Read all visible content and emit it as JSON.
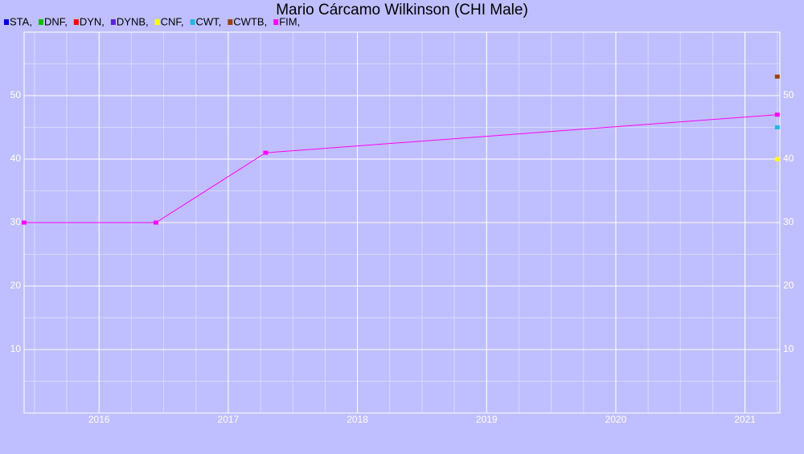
{
  "chart_data": {
    "type": "line",
    "title": "Mario Cárcamo Wilkinson (CHI Male)",
    "series": [
      {
        "name": "STA,",
        "color": "#0000dd",
        "x": [],
        "values": []
      },
      {
        "name": "DNF,",
        "color": "#00c000",
        "x": [],
        "values": []
      },
      {
        "name": "DYN,",
        "color": "#ff0000",
        "x": [],
        "values": []
      },
      {
        "name": "DYNB,",
        "color": "#6020e0",
        "x": [],
        "values": []
      },
      {
        "name": "CNF,",
        "color": "#ffff00",
        "x": [
          2021.25
        ],
        "values": [
          40
        ]
      },
      {
        "name": "CWT,",
        "color": "#20b8e0",
        "x": [
          2021.25
        ],
        "values": [
          45
        ]
      },
      {
        "name": "CWTB,",
        "color": "#a04000",
        "x": [
          2021.25
        ],
        "values": [
          53
        ]
      },
      {
        "name": "FIM,",
        "color": "#ff00ff",
        "x": [
          2015.42,
          2016.44,
          2017.29,
          2021.25
        ],
        "values": [
          30,
          30,
          41,
          47
        ]
      }
    ],
    "xlim": [
      2015.42,
      2021.27
    ],
    "xticks": [
      2016,
      2017,
      2018,
      2019,
      2020,
      2021
    ],
    "ylim": [
      0,
      60
    ],
    "yticks": [
      10,
      20,
      30,
      40,
      50
    ],
    "grid": true,
    "minor_grid": true,
    "legend": "top-left"
  }
}
